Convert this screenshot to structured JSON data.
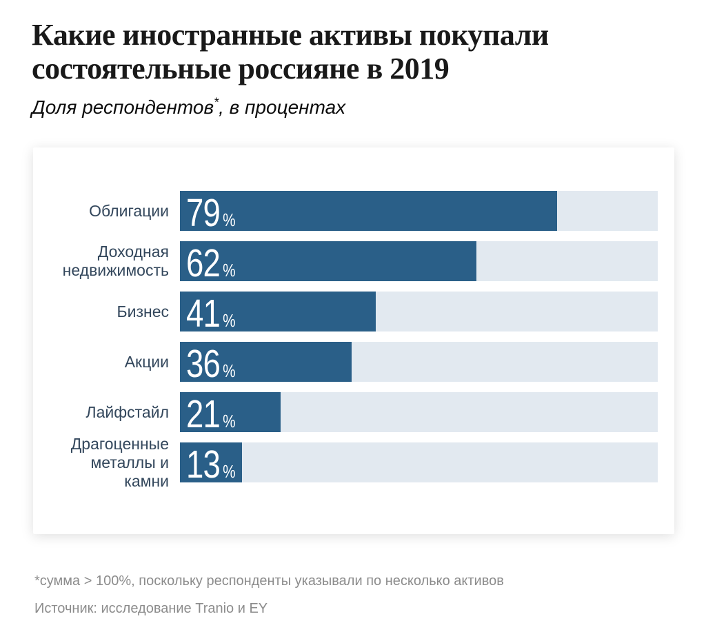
{
  "header": {
    "title": "Какие иностранные активы покупали состоятельные россияне в 2019",
    "title_lines": [
      "Какие иностранные активы покупали",
      "состоятельные россияне в 2019"
    ],
    "subtitle_prefix": "Доля респондентов",
    "subtitle_asterisk": "*",
    "subtitle_suffix": ",  в процентах"
  },
  "chart_data": {
    "type": "bar",
    "orientation": "horizontal",
    "title": "Какие иностранные активы покупали состоятельные россияне в 2019",
    "subtitle": "Доля респондентов*, в процентах",
    "categories": [
      "Облигации",
      "Доходная недвижимость",
      "Бизнес",
      "Акции",
      "Лайфстайл",
      "Драгоценные металлы и камни"
    ],
    "values": [
      79,
      62,
      41,
      36,
      21,
      13
    ],
    "unit": "%",
    "xlim": [
      0,
      100
    ],
    "grid": false,
    "legend": false,
    "colors": {
      "bar_fill": "#2a5f88",
      "bar_track": "#e2e9f0",
      "label_text": "#33475c",
      "value_text": "#ffffff"
    }
  },
  "footer": {
    "footnote": "*сумма > 100%, поскольку респонденты указывали по несколько активов",
    "source": "Источник:  исследование Tranio и EY"
  }
}
